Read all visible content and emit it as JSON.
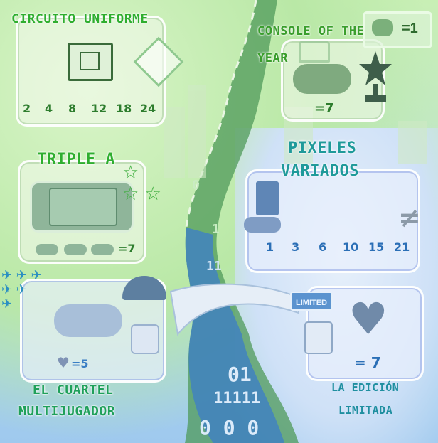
{
  "circuit": {
    "title": "CIRCUITO UNIFORME",
    "numbers": [
      "2",
      "4",
      "8",
      "12",
      "18",
      "24"
    ]
  },
  "console": {
    "title_line1": "CONSOLE OF THE",
    "title_line2": "YEAR",
    "badge": "=1",
    "count": "=7"
  },
  "triple": {
    "title": "TRIPLE A",
    "count": "=7"
  },
  "pixeles": {
    "title_line1": "PIXELES",
    "title_line2": "VARIADOS",
    "numbers": [
      "1",
      "3",
      "6",
      "10",
      "15",
      "21"
    ],
    "symbol": "≠"
  },
  "cuartel": {
    "title_line1": "EL CUARTEL",
    "title_line2": "MULTIJUGADOR",
    "heart_count": "=5"
  },
  "edicion": {
    "title_line1": "LA EDICIÓN",
    "title_line2": "LIMITADA",
    "tag": "LIMITED",
    "count": "= 7"
  },
  "river_digits": [
    "0",
    "1",
    "11",
    "01",
    "11111",
    "0 0 0"
  ],
  "colors": {
    "green": "#2fae2f",
    "blue": "#1a7fc4",
    "river": "#3f8ccf"
  }
}
